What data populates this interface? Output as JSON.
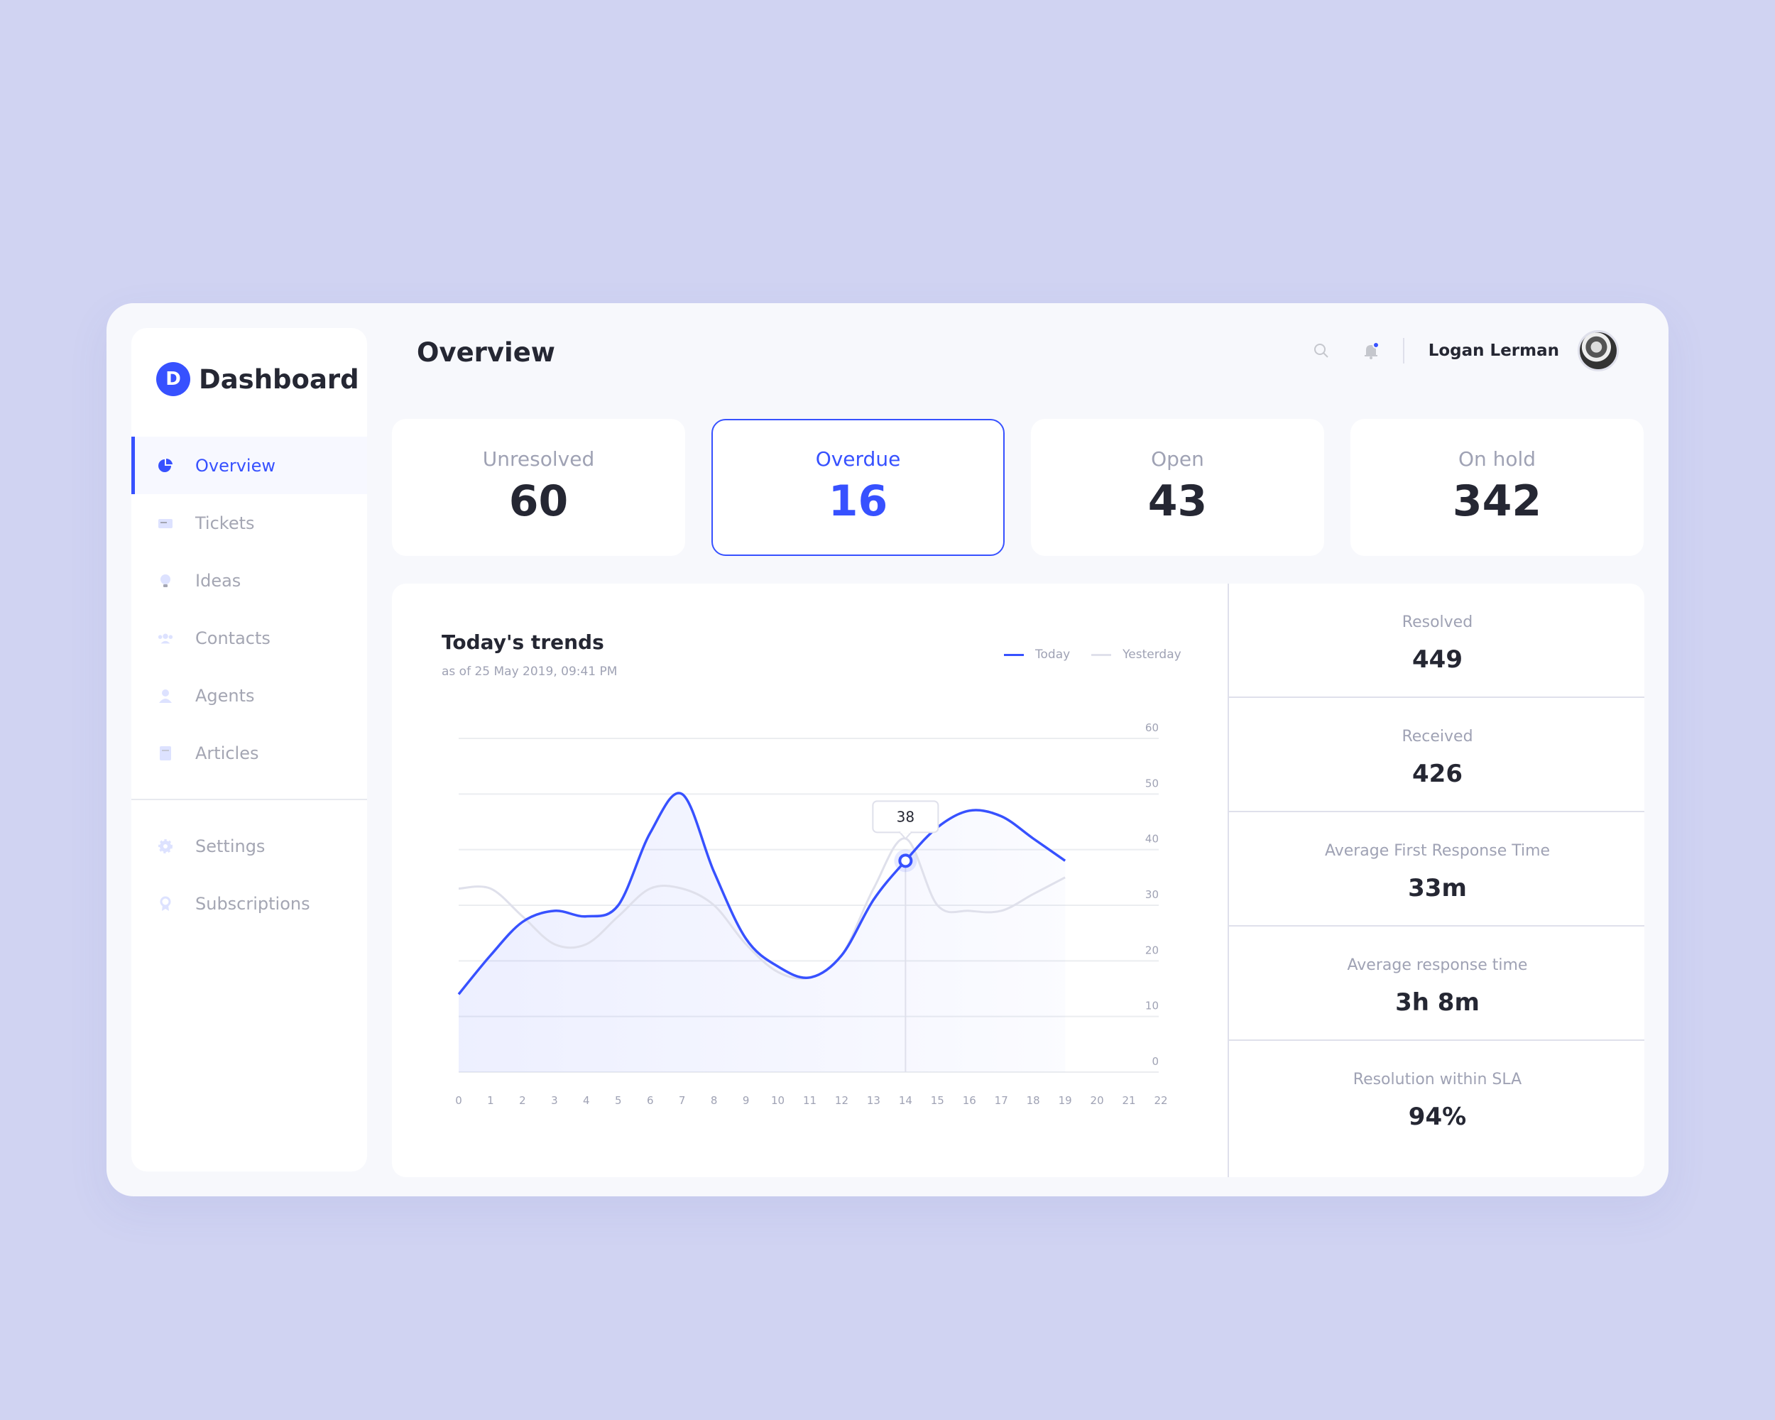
{
  "brand": {
    "logo_letter": "D",
    "title": "Dashboard"
  },
  "sidebar": {
    "items": [
      {
        "label": "Overview",
        "icon": "pie-chart-icon",
        "active": true
      },
      {
        "label": "Tickets",
        "icon": "ticket-icon",
        "active": false
      },
      {
        "label": "Ideas",
        "icon": "lightbulb-icon",
        "active": false
      },
      {
        "label": "Contacts",
        "icon": "contacts-icon",
        "active": false
      },
      {
        "label": "Agents",
        "icon": "agent-icon",
        "active": false
      },
      {
        "label": "Articles",
        "icon": "article-icon",
        "active": false
      }
    ],
    "bottom_items": [
      {
        "label": "Settings",
        "icon": "gear-icon"
      },
      {
        "label": "Subscriptions",
        "icon": "award-icon"
      }
    ]
  },
  "header": {
    "title": "Overview",
    "user_name": "Logan Lerman"
  },
  "kpis": [
    {
      "label": "Unresolved",
      "value": "60",
      "active": false
    },
    {
      "label": "Overdue",
      "value": "16",
      "active": true
    },
    {
      "label": "Open",
      "value": "43",
      "active": false
    },
    {
      "label": "On hold",
      "value": "342",
      "active": false
    }
  ],
  "stats": [
    {
      "label": "Resolved",
      "value": "449"
    },
    {
      "label": "Received",
      "value": "426"
    },
    {
      "label": "Average First Response Time",
      "value": "33m"
    },
    {
      "label": "Average response time",
      "value": "3h 8m"
    },
    {
      "label": "Resolution within SLA",
      "value": "94%"
    }
  ],
  "colors": {
    "accent": "#3751ff",
    "muted": "#9fa2b4",
    "yesterday": "#dfe0eb"
  },
  "chart_data": {
    "type": "line",
    "title": "Today's trends",
    "subtitle": "as of 25 May 2019, 09:41 PM",
    "x": [
      0,
      1,
      2,
      3,
      4,
      5,
      6,
      7,
      8,
      9,
      10,
      11,
      12,
      13,
      14,
      15,
      16,
      17,
      18,
      19,
      20,
      21,
      22
    ],
    "x_tick_labels": [
      "0",
      "1",
      "2",
      "3",
      "4",
      "5",
      "6",
      "7",
      "8",
      "9",
      "10",
      "11",
      "12",
      "13",
      "14",
      "15",
      "16",
      "17",
      "18",
      "19",
      "20",
      "21",
      "22"
    ],
    "ylim": [
      0,
      60
    ],
    "y_ticks": [
      0,
      10,
      20,
      30,
      40,
      50,
      60
    ],
    "legend_position": "top-right",
    "series": [
      {
        "name": "Today",
        "x": [
          0,
          1,
          2,
          3,
          4,
          5,
          6,
          7,
          8,
          9,
          10,
          11,
          12,
          13,
          14,
          15,
          16,
          17,
          18,
          19
        ],
        "values": [
          14,
          21,
          27,
          29,
          28,
          30,
          43,
          50,
          36,
          24,
          19,
          17,
          21,
          31,
          38,
          44,
          47,
          46,
          42,
          38
        ]
      },
      {
        "name": "Yesterday",
        "x": [
          0,
          1,
          2,
          3,
          4,
          5,
          6,
          7,
          8,
          9,
          10,
          11,
          12,
          13,
          14,
          15,
          16,
          17,
          18,
          19
        ],
        "values": [
          33,
          33,
          28,
          23,
          23,
          28,
          33,
          33,
          30,
          23,
          18,
          17,
          21,
          33,
          42,
          30,
          29,
          29,
          32,
          35
        ]
      }
    ],
    "highlight": {
      "series": "Today",
      "x": 14,
      "value": 38,
      "label": "38"
    }
  }
}
